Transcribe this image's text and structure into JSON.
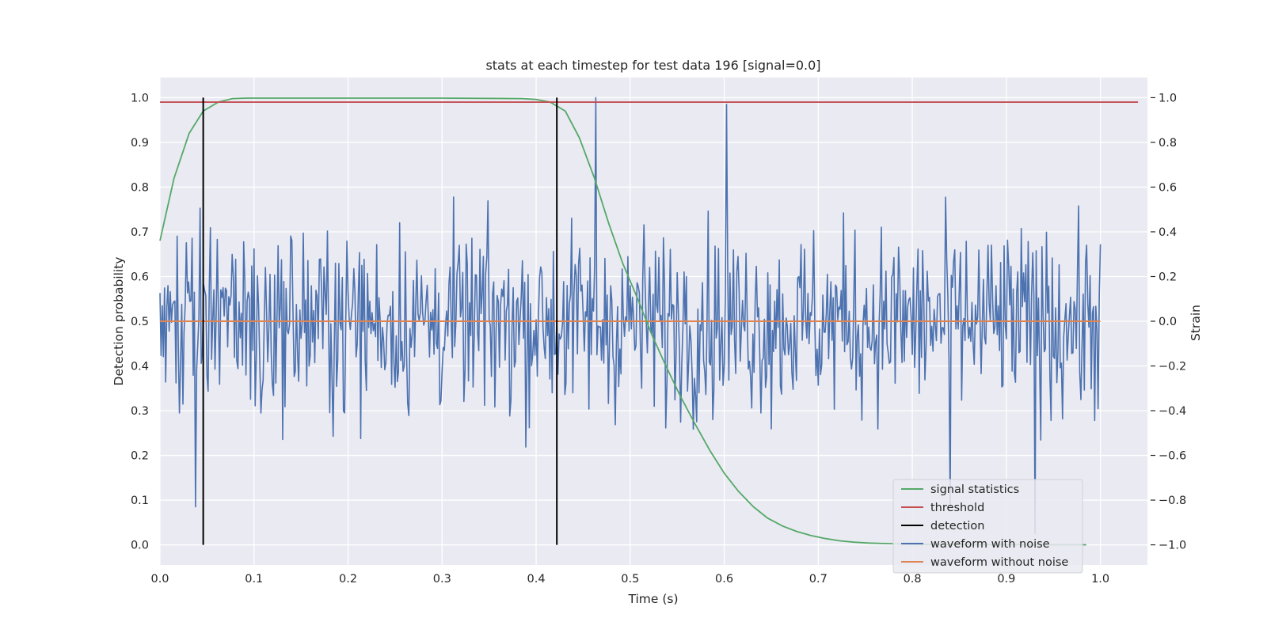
{
  "chart_data": {
    "type": "line",
    "title": "stats at each timestep for test data 196 [signal=0.0]",
    "xlabel": "Time (s)",
    "ylabel_left": "Detection probability",
    "ylabel_right": "Strain",
    "xlim": [
      0.0,
      1.05
    ],
    "ylim_left": [
      -0.045,
      1.045
    ],
    "ylim_right": [
      -1.09,
      1.09
    ],
    "x_ticks": [
      0.0,
      0.1,
      0.2,
      0.3,
      0.4,
      0.5,
      0.6,
      0.7,
      0.8,
      0.9,
      1.0
    ],
    "x_tick_labels": [
      "0.0",
      "0.1",
      "0.2",
      "0.3",
      "0.4",
      "0.5",
      "0.6",
      "0.7",
      "0.8",
      "0.9",
      "1.0"
    ],
    "y_left_ticks": [
      0.0,
      0.1,
      0.2,
      0.3,
      0.4,
      0.5,
      0.6,
      0.7,
      0.8,
      0.9,
      1.0
    ],
    "y_left_tick_labels": [
      "0.0",
      "0.1",
      "0.2",
      "0.3",
      "0.4",
      "0.5",
      "0.6",
      "0.7",
      "0.8",
      "0.9",
      "1.0"
    ],
    "y_right_ticks": [
      -1.0,
      -0.8,
      -0.6,
      -0.4,
      -0.2,
      0.0,
      0.2,
      0.4,
      0.6,
      0.8,
      1.0
    ],
    "y_right_tick_labels": [
      "−1.0",
      "−0.8",
      "−0.6",
      "−0.4",
      "−0.2",
      "0.0",
      "0.2",
      "0.4",
      "0.6",
      "0.8",
      "1.0"
    ],
    "grid": true,
    "legend_position": "bottom-right",
    "series": [
      {
        "name": "signal statistics",
        "color": "#55a868",
        "axis": "left",
        "x": [
          0.0,
          0.015,
          0.031,
          0.046,
          0.062,
          0.077,
          0.092,
          0.108,
          0.123,
          0.139,
          0.2,
          0.3,
          0.385,
          0.4,
          0.415,
          0.431,
          0.446,
          0.462,
          0.477,
          0.492,
          0.508,
          0.523,
          0.538,
          0.554,
          0.569,
          0.585,
          0.6,
          0.615,
          0.631,
          0.646,
          0.662,
          0.677,
          0.692,
          0.708,
          0.723,
          0.738,
          0.754,
          0.769,
          0.785,
          0.8,
          0.85,
          0.9,
          0.95,
          0.985
        ],
        "y": [
          0.68,
          0.82,
          0.92,
          0.97,
          0.99,
          0.998,
          0.999,
          0.999,
          0.999,
          0.999,
          0.999,
          0.999,
          0.998,
          0.996,
          0.99,
          0.97,
          0.91,
          0.82,
          0.72,
          0.63,
          0.55,
          0.47,
          0.4,
          0.33,
          0.27,
          0.21,
          0.16,
          0.12,
          0.085,
          0.06,
          0.042,
          0.03,
          0.021,
          0.014,
          0.009,
          0.006,
          0.004,
          0.003,
          0.002,
          0.001,
          0.0005,
          0.0003,
          0.0002,
          0.0002
        ]
      },
      {
        "name": "threshold",
        "color": "#c44e52",
        "axis": "left",
        "x": [
          0.0,
          1.04
        ],
        "y": [
          0.99,
          0.99
        ]
      },
      {
        "name": "waveform with noise",
        "color": "#4c72b0",
        "axis": "right",
        "x_start": 0.0,
        "x_end": 1.0,
        "peaks": [
          {
            "x": 0.463,
            "y": 1.0
          },
          {
            "x": 0.602,
            "y": 0.97
          },
          {
            "x": 0.84,
            "y": -0.83
          },
          {
            "x": 0.93,
            "y": -0.95
          },
          {
            "x": 0.038,
            "y": -0.83
          }
        ]
      },
      {
        "name": "waveform without noise",
        "color": "#dd8452",
        "axis": "right",
        "x": [
          0.0,
          1.0
        ],
        "y": [
          0.0,
          0.0
        ]
      }
    ],
    "detections": {
      "name": "detection",
      "color": "#000000",
      "x": [
        0.046,
        0.422
      ],
      "y_range": [
        0.0,
        1.0
      ]
    }
  }
}
